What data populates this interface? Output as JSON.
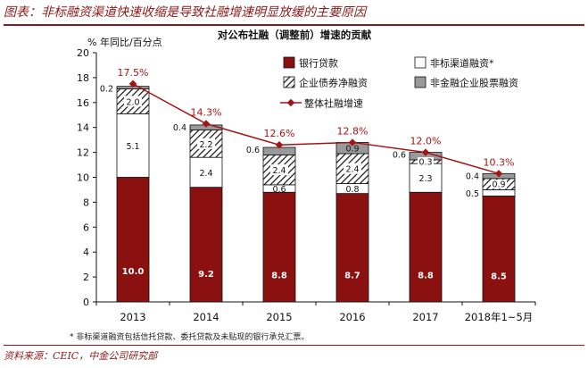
{
  "page": {
    "title": "图表：非标融资渠道快速收缩是导致社融增速明显放缓的主要原因",
    "source": "资料来源：CEIC，中金公司研究部",
    "footnote": "* 非标渠道融资包括信托贷款、委托贷款及未贴现的银行承兑汇票。"
  },
  "chart_data": {
    "type": "bar",
    "stacked": true,
    "title": "对公布社融（调整前）增速的贡献",
    "ylabel": "% 年同比/百分点",
    "ylim": [
      0,
      20
    ],
    "yticks": [
      0,
      2,
      4,
      6,
      8,
      10,
      12,
      14,
      16,
      18,
      20
    ],
    "categories": [
      "2013",
      "2014",
      "2015",
      "2016",
      "2017",
      "2018年1~5月"
    ],
    "series": [
      {
        "name": "银行贷款",
        "values": [
          10.0,
          9.2,
          8.8,
          8.7,
          8.8,
          8.5
        ],
        "labels": [
          "10.0",
          "9.2",
          "8.8",
          "8.7",
          "8.8",
          "8.5"
        ],
        "color": "#8b1010"
      },
      {
        "name": "非标渠道融资*",
        "values": [
          5.1,
          2.4,
          0.6,
          0.8,
          2.3,
          0.5
        ],
        "labels": [
          "5.1",
          "2.4",
          "0.6",
          "0.8",
          "2.3",
          "0.5"
        ],
        "color": "#ffffff"
      },
      {
        "name": "企业债券净融资",
        "values": [
          2.0,
          2.2,
          2.4,
          2.4,
          0.3,
          0.9
        ],
        "labels": [
          "2.0",
          "2.2",
          "2.4",
          "2.4",
          "0.3",
          "0.9"
        ],
        "color": "hatch"
      },
      {
        "name": "非金融企业股票融资",
        "values": [
          0.2,
          0.4,
          0.6,
          0.9,
          0.6,
          0.4
        ],
        "labels": [
          "0.2",
          "0.4",
          "0.6",
          "0.9",
          "0.6",
          "0.4"
        ],
        "color": "#999999"
      }
    ],
    "line": {
      "name": "整体社融增速",
      "values": [
        17.5,
        14.3,
        12.6,
        12.8,
        12.0,
        10.3
      ],
      "labels": [
        "17.5%",
        "14.3%",
        "12.6%",
        "12.8%",
        "12.0%",
        "10.3%"
      ],
      "color": "#a31515"
    },
    "legend_position": "top-right",
    "grid": false
  }
}
